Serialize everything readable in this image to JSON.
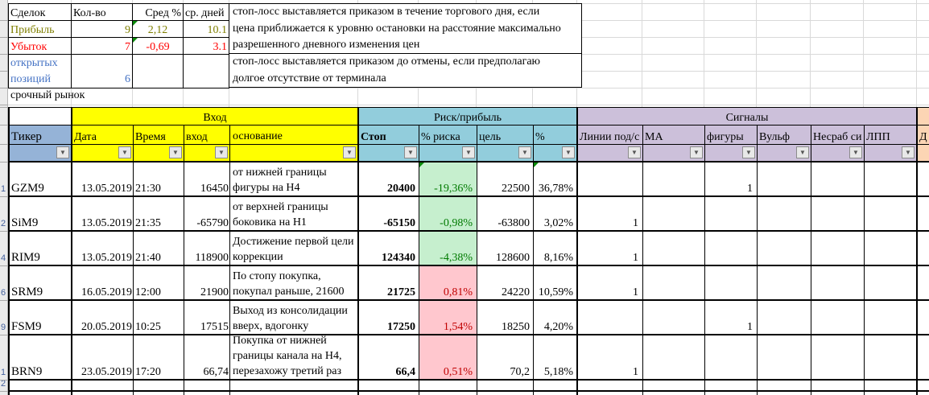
{
  "colors": {
    "yellow": "#FFFF00",
    "blue_header": "#95B3D7",
    "cyan_header": "#92CDDC",
    "purple_header": "#CCC0DA",
    "peach_header": "#FCD5B4",
    "green_fill": "#C6EFCE",
    "green_text": "#007A00",
    "red_fill": "#FFC7CE",
    "red_text": "#C00000",
    "profit_text": "#7F7F00",
    "loss_text": "#FF0000",
    "open_text": "#4472C4"
  },
  "summary": {
    "headers": {
      "deals": "Сделок",
      "count": "Кол-во",
      "avg_pct": "Сред %",
      "avg_days": "ср. дней"
    },
    "profit": {
      "label": "Прибыль",
      "count": "9",
      "avg_pct": "2,12",
      "avg_days": "10.1"
    },
    "loss": {
      "label": "Убыток",
      "count": "7",
      "avg_pct": "-0,69",
      "avg_days": "3.1"
    },
    "open": {
      "label": "открытых\nпозиций",
      "count": "6"
    }
  },
  "notes": {
    "intraday": "стоп-лосс выставляется приказом в течение торгового дня, если\nцена приближается к уровню остановки на расстояние максимально\nразрешенного дневного изменения цен",
    "gtc": "стоп-лосс выставляется приказом до отмены, если предполагаю\nдолгое отсутствие от терминала"
  },
  "market_label": "срочный рынок",
  "main_table": {
    "group_headers": {
      "entry": "Вход",
      "risk": "Риск/прибыль",
      "signals": "Сигналы",
      "d": ""
    },
    "columns": {
      "ticker": "Тикер",
      "date": "Дата",
      "time": "Время",
      "entry": "вход",
      "reason": "основание",
      "stop": "Стоп",
      "risk_pct": "% риска",
      "target": "цель",
      "target_pct": "%",
      "lines": "Линии под/с",
      "ma": "МА",
      "figures": "фигуры",
      "wolfe": "Вульф",
      "failed_signal": "Несраб си",
      "lpp": "ЛПП",
      "d": "Д"
    },
    "rows": [
      {
        "row_num": "1",
        "ticker": "GZM9",
        "date": "13.05.2019",
        "time": "21:30",
        "entry": "16450",
        "reason": "от нижней границы\nфигуры на Н4",
        "stop": "20400",
        "risk_pct": "-19,36%",
        "risk_color": "green",
        "corner_risk": true,
        "target": "22500",
        "target_pct": "36,78%",
        "corner_target": true,
        "signals": {
          "lines": "",
          "ma": "",
          "figures": "1",
          "wolfe": "",
          "failed_signal": "",
          "lpp": ""
        }
      },
      {
        "row_num": "2",
        "ticker": "SiM9",
        "date": "13.05.2019",
        "time": "21:35",
        "entry": "-65790",
        "reason": "от верхней границы\nбоковика на Н1",
        "stop": "-65150",
        "risk_pct": "-0,98%",
        "risk_color": "green",
        "target": "-63800",
        "target_pct": "3,02%",
        "signals": {
          "lines": "1",
          "ma": "",
          "figures": "",
          "wolfe": "",
          "failed_signal": "",
          "lpp": ""
        }
      },
      {
        "row_num": "4",
        "ticker": "RIM9",
        "date": "13.05.2019",
        "time": "21:40",
        "entry": "118900",
        "reason": "Достижение первой цели\nкоррекции",
        "stop": "124340",
        "risk_pct": "-4,38%",
        "risk_color": "green",
        "target": "128600",
        "target_pct": "8,16%",
        "signals": {
          "lines": "1",
          "ma": "",
          "figures": "",
          "wolfe": "",
          "failed_signal": "",
          "lpp": ""
        }
      },
      {
        "row_num": "6",
        "ticker": "SRM9",
        "date": "16.05.2019",
        "time": "12:00",
        "entry": "21900",
        "reason": "По стопу покупка,\nпокупал раньше, 21600",
        "stop": "21725",
        "risk_pct": "0,81%",
        "risk_color": "red",
        "target": "24220",
        "target_pct": "10,59%",
        "signals": {
          "lines": "1",
          "ma": "",
          "figures": "",
          "wolfe": "",
          "failed_signal": "",
          "lpp": ""
        }
      },
      {
        "row_num": "9",
        "ticker": "FSM9",
        "date": "20.05.2019",
        "time": "10:25",
        "entry": "17515",
        "reason": "Выход из консолидации\nвверх, вдогонку",
        "stop": "17250",
        "risk_pct": "1,54%",
        "risk_color": "red",
        "target": "18250",
        "target_pct": "4,20%",
        "signals": {
          "lines": "",
          "ma": "",
          "figures": "1",
          "wolfe": "",
          "failed_signal": "",
          "lpp": ""
        }
      },
      {
        "row_num": "1",
        "ticker": "BRN9",
        "date": "23.05.2019",
        "time": "17:20",
        "entry": "66,74",
        "reason": "Покупка от нижней\nграницы канала на Н4,\nперезахожу третий раз",
        "stop": "66,4",
        "risk_pct": "0,51%",
        "risk_color": "red",
        "target": "70,2",
        "target_pct": "5,18%",
        "tall": true,
        "signals": {
          "lines": "1",
          "ma": "",
          "figures": "",
          "wolfe": "",
          "failed_signal": "",
          "lpp": ""
        }
      },
      {
        "row_num": "2",
        "empty": true,
        "ticker": "",
        "date": "",
        "time": "",
        "entry": "",
        "reason": "",
        "stop": "",
        "risk_pct": "",
        "target": "",
        "target_pct": "",
        "signals": {
          "lines": "",
          "ma": "",
          "figures": "",
          "wolfe": "",
          "failed_signal": "",
          "lpp": ""
        }
      }
    ]
  }
}
